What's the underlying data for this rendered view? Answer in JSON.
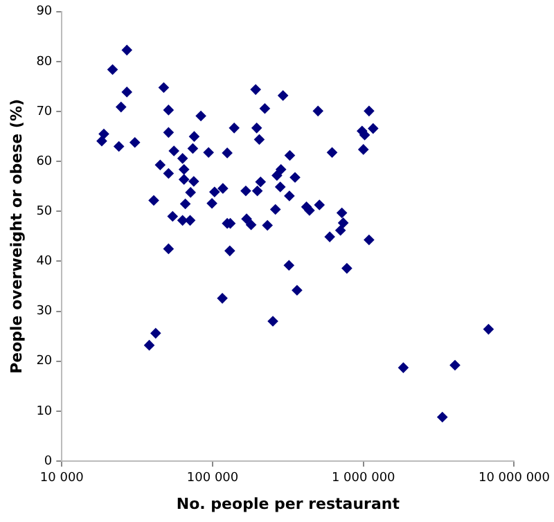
{
  "chart_data": {
    "type": "scatter",
    "xlabel": "No. people per restaurant",
    "ylabel": "People overweight or obese (%)",
    "log": "x",
    "marker": "diamond",
    "grid": false,
    "legend": false,
    "xlim": [
      10000,
      10000000
    ],
    "xticks": [
      {
        "value": 10000,
        "label": "10 000"
      },
      {
        "value": 100000,
        "label": "100 000"
      },
      {
        "value": 1000000,
        "label": "1 000 000"
      },
      {
        "value": 10000000,
        "label": "10 000 000"
      }
    ],
    "ylim": [
      0,
      90
    ],
    "yticks": [
      0,
      10,
      20,
      30,
      40,
      50,
      60,
      70,
      80,
      90
    ],
    "series": [
      {
        "color": "#00007f",
        "x": [
          27000,
          21700,
          27000,
          24700,
          47400,
          51000,
          83600,
          19000,
          18400,
          23900,
          30500,
          51000,
          75500,
          55400,
          73900,
          94000,
          63200,
          44900,
          51000,
          64600,
          64600,
          75000,
          71400,
          40700,
          65900,
          103000,
          117000,
          99000,
          54300,
          63200,
          70900,
          125000,
          131000,
          168000,
          180000,
          231000,
          193000,
          293000,
          222000,
          139000,
          196000,
          204000,
          125000,
          325000,
          284000,
          267000,
          352000,
          208000,
          166000,
          198000,
          281000,
          323000,
          261000,
          500000,
          1090000,
          980000,
          1020000,
          1160000,
          620000,
          1000000,
          419000,
          439000,
          511000,
          720000,
          735000,
          705000,
          598000,
          1090000,
          51000,
          130000,
          321000,
          363000,
          116000,
          251000,
          41900,
          38000,
          777000,
          6760000,
          1840000,
          4050000,
          3340000
        ],
        "values": [
          82.3,
          78.4,
          73.9,
          70.9,
          74.8,
          70.3,
          69.1,
          65.5,
          64.1,
          63.0,
          63.8,
          65.8,
          65.0,
          62.1,
          62.6,
          61.8,
          60.6,
          59.3,
          57.6,
          58.4,
          56.4,
          56.0,
          53.8,
          52.2,
          51.5,
          53.9,
          54.6,
          51.6,
          49.0,
          48.2,
          48.2,
          47.6,
          47.6,
          48.5,
          47.3,
          47.2,
          74.4,
          73.2,
          70.6,
          66.7,
          66.7,
          64.4,
          61.7,
          61.2,
          58.4,
          57.2,
          56.8,
          55.9,
          54.1,
          54.1,
          54.9,
          53.1,
          50.4,
          70.1,
          70.1,
          66.1,
          65.3,
          66.6,
          61.8,
          62.4,
          50.9,
          50.2,
          51.3,
          49.7,
          47.7,
          46.2,
          44.9,
          44.3,
          42.5,
          42.1,
          39.2,
          34.2,
          32.6,
          28.0,
          25.6,
          23.2,
          38.6,
          26.4,
          18.7,
          19.2,
          8.8
        ]
      }
    ]
  }
}
